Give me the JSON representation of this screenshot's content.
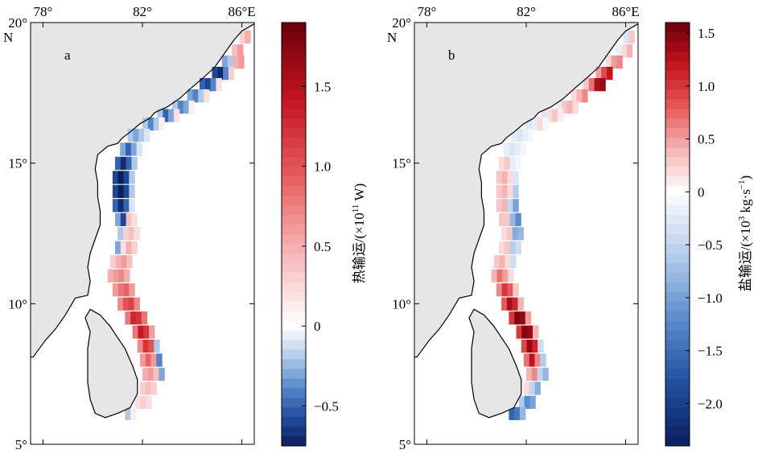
{
  "chart_data": [
    {
      "type": "heatmap",
      "panel_label": "a",
      "map": {
        "lon_range": [
          77.5,
          86.5
        ],
        "lat_range": [
          5,
          20
        ],
        "lon_ticks": [
          "78°",
          "82°",
          "86°E"
        ],
        "lon_tick_values": [
          78,
          82,
          86
        ],
        "lat_ticks": [
          "20°",
          "15°",
          "10°",
          "5°"
        ],
        "lat_tick_values": [
          20,
          15,
          10,
          5
        ],
        "north_label": "N",
        "land_color": "#e6e6e6",
        "ocean_color": "#ffffff"
      },
      "colorbar": {
        "label_prefix": "热输运/(×10",
        "label_exp": "11",
        "label_suffix": " W)",
        "range": [
          -0.75,
          1.9
        ],
        "ticks": [
          1.5,
          1.0,
          0.5,
          0,
          -0.5
        ],
        "tick_labels": [
          "1.5",
          "1.0",
          "0.5",
          "0",
          "−0.5"
        ]
      },
      "band": [
        {
          "lat": 19.5,
          "lon": 85.9,
          "vals": [
            0.3,
            0.5
          ]
        },
        {
          "lat": 19.0,
          "lon": 85.6,
          "vals": [
            0.4,
            0.6
          ]
        },
        {
          "lat": 18.6,
          "lon": 85.2,
          "vals": [
            -0.3,
            -0.2,
            0.5,
            0.6
          ]
        },
        {
          "lat": 18.2,
          "lon": 84.8,
          "vals": [
            -0.6,
            -0.7,
            -0.4,
            0.3
          ]
        },
        {
          "lat": 17.8,
          "lon": 84.3,
          "vals": [
            -0.5,
            -0.6,
            -0.4,
            0.2
          ]
        },
        {
          "lat": 17.4,
          "lon": 83.8,
          "vals": [
            -0.3,
            -0.4,
            -0.2,
            0.2
          ]
        },
        {
          "lat": 17.0,
          "lon": 83.2,
          "vals": [
            -0.2,
            -0.4,
            -0.3,
            0.1
          ]
        },
        {
          "lat": 16.7,
          "lon": 82.6,
          "vals": [
            -0.2,
            -0.5,
            -0.3,
            0.2
          ]
        },
        {
          "lat": 16.4,
          "lon": 82.0,
          "vals": [
            -0.2,
            -0.4,
            -0.2,
            0.1
          ]
        },
        {
          "lat": 16.0,
          "lon": 81.4,
          "vals": [
            -0.2,
            -0.3,
            -0.2,
            -0.1
          ]
        },
        {
          "lat": 15.5,
          "lon": 81.1,
          "vals": [
            -0.3,
            -0.5,
            -0.3,
            -0.1
          ]
        },
        {
          "lat": 15.0,
          "lon": 80.9,
          "vals": [
            -0.5,
            -0.7,
            -0.5,
            -0.2
          ]
        },
        {
          "lat": 14.5,
          "lon": 80.8,
          "vals": [
            -0.6,
            -0.8,
            -0.6,
            -0.2
          ]
        },
        {
          "lat": 14.0,
          "lon": 80.8,
          "vals": [
            -0.6,
            -0.8,
            -0.6,
            -0.2
          ]
        },
        {
          "lat": 13.5,
          "lon": 80.8,
          "vals": [
            -0.5,
            -0.7,
            -0.5,
            -0.1
          ]
        },
        {
          "lat": 13.0,
          "lon": 80.9,
          "vals": [
            -0.3,
            -0.6,
            0.4,
            0.2
          ]
        },
        {
          "lat": 12.5,
          "lon": 81.0,
          "vals": [
            -0.2,
            0.3,
            0.4,
            0.2
          ]
        },
        {
          "lat": 12.0,
          "lon": 80.9,
          "vals": [
            -0.3,
            0.2,
            0.5,
            0.3
          ]
        },
        {
          "lat": 11.5,
          "lon": 80.7,
          "vals": [
            0.3,
            0.5,
            0.6,
            0.4
          ]
        },
        {
          "lat": 11.0,
          "lon": 80.6,
          "vals": [
            0.5,
            0.6,
            0.7,
            0.5
          ]
        },
        {
          "lat": 10.5,
          "lon": 80.8,
          "vals": [
            0.6,
            0.8,
            0.9,
            0.6
          ]
        },
        {
          "lat": 10.0,
          "lon": 81.0,
          "vals": [
            0.7,
            1.0,
            1.1,
            0.7
          ]
        },
        {
          "lat": 9.5,
          "lon": 81.3,
          "vals": [
            0.8,
            1.3,
            1.2,
            0.8
          ]
        },
        {
          "lat": 9.0,
          "lon": 81.6,
          "vals": [
            0.8,
            1.4,
            1.2,
            0.6
          ]
        },
        {
          "lat": 8.5,
          "lon": 81.8,
          "vals": [
            0.7,
            1.2,
            1.0,
            -0.2
          ]
        },
        {
          "lat": 8.0,
          "lon": 81.9,
          "vals": [
            0.6,
            0.9,
            0.6,
            -0.4
          ]
        },
        {
          "lat": 7.5,
          "lon": 82.0,
          "vals": [
            0.5,
            0.6,
            0.4,
            -0.3
          ]
        },
        {
          "lat": 7.0,
          "lon": 81.9,
          "vals": [
            0.3,
            0.4,
            0.3
          ]
        },
        {
          "lat": 6.5,
          "lon": 81.7,
          "vals": [
            0.2,
            0.3,
            0.2
          ]
        },
        {
          "lat": 6.1,
          "lon": 81.3,
          "vals": [
            -0.2,
            0.1
          ]
        }
      ]
    },
    {
      "type": "heatmap",
      "panel_label": "b",
      "map": {
        "lon_range": [
          77.5,
          86.5
        ],
        "lat_range": [
          5,
          20
        ],
        "lon_ticks": [
          "78°",
          "82°",
          "86°E"
        ],
        "lon_tick_values": [
          78,
          82,
          86
        ],
        "lat_ticks": [
          "20°",
          "15°",
          "10°",
          "5°"
        ],
        "lat_tick_values": [
          20,
          15,
          10,
          5
        ],
        "north_label": "N",
        "land_color": "#e6e6e6",
        "ocean_color": "#ffffff"
      },
      "colorbar": {
        "label_prefix": "盐输运/(×10",
        "label_exp": "3",
        "label_suffix": " kg·s",
        "label_exp2": "−1",
        "label_end": ")",
        "range": [
          -2.4,
          1.6
        ],
        "ticks": [
          1.5,
          1.0,
          0.5,
          0,
          -0.5,
          -1.0,
          -1.5,
          -2.0
        ],
        "tick_labels": [
          "1.5",
          "1.0",
          "0.5",
          "0",
          "−0.5",
          "−1.0",
          "−1.5",
          "−2.0"
        ]
      },
      "band": [
        {
          "lat": 19.5,
          "lon": 85.9,
          "vals": [
            -0.3,
            0.3
          ]
        },
        {
          "lat": 19.0,
          "lon": 85.6,
          "vals": [
            -0.2,
            0.2,
            0.4
          ]
        },
        {
          "lat": 18.6,
          "lon": 85.2,
          "vals": [
            0.2,
            0.5,
            0.6
          ]
        },
        {
          "lat": 18.2,
          "lon": 84.8,
          "vals": [
            0.5,
            0.9,
            1.2
          ]
        },
        {
          "lat": 17.8,
          "lon": 84.3,
          "vals": [
            0.3,
            0.7,
            1.3,
            1.4
          ]
        },
        {
          "lat": 17.4,
          "lon": 83.8,
          "vals": [
            0.2,
            0.4,
            0.6
          ]
        },
        {
          "lat": 17.0,
          "lon": 83.2,
          "vals": [
            -0.2,
            0.3,
            0.4,
            0.2
          ]
        },
        {
          "lat": 16.7,
          "lon": 82.6,
          "vals": [
            -0.3,
            0.2,
            0.3,
            0.1
          ]
        },
        {
          "lat": 16.4,
          "lon": 82.0,
          "vals": [
            -0.3,
            -0.2,
            0.2,
            -0.1
          ]
        },
        {
          "lat": 16.0,
          "lon": 81.4,
          "vals": [
            -0.2,
            -0.3,
            -0.2,
            -0.1
          ]
        },
        {
          "lat": 15.5,
          "lon": 81.1,
          "vals": [
            -0.2,
            -0.3,
            -0.2,
            -0.1
          ]
        },
        {
          "lat": 15.0,
          "lon": 80.9,
          "vals": [
            0.2,
            0.3,
            -0.2,
            -0.1
          ]
        },
        {
          "lat": 14.5,
          "lon": 80.8,
          "vals": [
            0.3,
            0.4,
            0.2,
            -0.3
          ]
        },
        {
          "lat": 14.0,
          "lon": 80.8,
          "vals": [
            0.3,
            0.4,
            0.2,
            -0.6
          ]
        },
        {
          "lat": 13.5,
          "lon": 80.8,
          "vals": [
            0.3,
            0.4,
            -0.5,
            -1.0
          ]
        },
        {
          "lat": 13.0,
          "lon": 80.9,
          "vals": [
            0.3,
            0.3,
            -0.8,
            -1.2
          ]
        },
        {
          "lat": 12.5,
          "lon": 81.0,
          "vals": [
            0.2,
            0.3,
            -0.9,
            -0.8
          ]
        },
        {
          "lat": 12.0,
          "lon": 80.9,
          "vals": [
            0.2,
            0.3,
            -0.6,
            -0.4
          ]
        },
        {
          "lat": 11.5,
          "lon": 80.7,
          "vals": [
            0.3,
            0.4,
            0.2,
            -0.4
          ]
        },
        {
          "lat": 11.0,
          "lon": 80.6,
          "vals": [
            0.4,
            0.7,
            0.5,
            0.2
          ]
        },
        {
          "lat": 10.5,
          "lon": 80.8,
          "vals": [
            0.6,
            1.0,
            0.8,
            0.3
          ]
        },
        {
          "lat": 10.0,
          "lon": 81.0,
          "vals": [
            0.8,
            1.3,
            1.1,
            0.4
          ]
        },
        {
          "lat": 9.5,
          "lon": 81.3,
          "vals": [
            1.0,
            1.5,
            1.4,
            0.5
          ]
        },
        {
          "lat": 9.0,
          "lon": 81.6,
          "vals": [
            1.0,
            1.5,
            1.4,
            0.4
          ]
        },
        {
          "lat": 8.5,
          "lon": 81.8,
          "vals": [
            0.9,
            1.4,
            1.1,
            -0.4
          ]
        },
        {
          "lat": 8.0,
          "lon": 81.9,
          "vals": [
            0.7,
            1.2,
            0.6,
            -0.6
          ]
        },
        {
          "lat": 7.5,
          "lon": 82.0,
          "vals": [
            0.4,
            0.6,
            -0.5,
            -0.8
          ]
        },
        {
          "lat": 7.0,
          "lon": 81.9,
          "vals": [
            0.2,
            -0.5,
            -0.9
          ]
        },
        {
          "lat": 6.5,
          "lon": 81.7,
          "vals": [
            -0.6,
            -1.2,
            -1.0
          ]
        },
        {
          "lat": 6.1,
          "lon": 81.3,
          "vals": [
            -1.6,
            -1.4,
            -0.8
          ]
        }
      ]
    }
  ]
}
